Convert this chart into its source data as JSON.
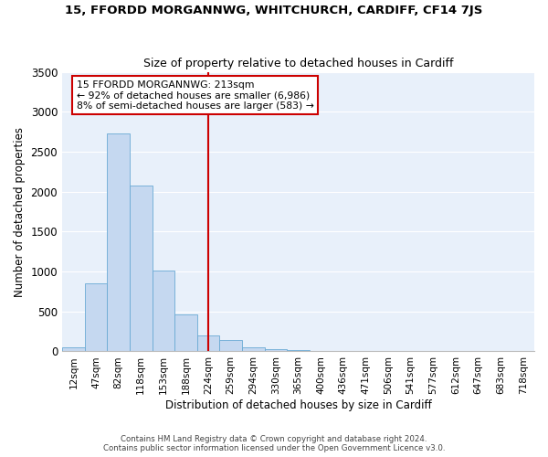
{
  "title": "15, FFORDD MORGANNWG, WHITCHURCH, CARDIFF, CF14 7JS",
  "subtitle": "Size of property relative to detached houses in Cardiff",
  "xlabel": "Distribution of detached houses by size in Cardiff",
  "ylabel": "Number of detached properties",
  "bar_color": "#c5d8f0",
  "bar_edgecolor": "#6aaad4",
  "background_color": "#e8f0fa",
  "grid_color": "#ffffff",
  "categories": [
    "12sqm",
    "47sqm",
    "82sqm",
    "118sqm",
    "153sqm",
    "188sqm",
    "224sqm",
    "259sqm",
    "294sqm",
    "330sqm",
    "365sqm",
    "400sqm",
    "436sqm",
    "471sqm",
    "506sqm",
    "541sqm",
    "577sqm",
    "612sqm",
    "647sqm",
    "683sqm",
    "718sqm"
  ],
  "values": [
    55,
    855,
    2730,
    2075,
    1010,
    460,
    205,
    140,
    55,
    25,
    20,
    10,
    0,
    0,
    0,
    0,
    0,
    0,
    0,
    0,
    0
  ],
  "ylim": [
    0,
    3500
  ],
  "yticks": [
    0,
    500,
    1000,
    1500,
    2000,
    2500,
    3000,
    3500
  ],
  "vline_bin": 6,
  "annotation_title": "15 FFORDD MORGANNWG: 213sqm",
  "annotation_line1": "← 92% of detached houses are smaller (6,986)",
  "annotation_line2": "8% of semi-detached houses are larger (583) →",
  "annotation_box_color": "#ffffff",
  "annotation_box_edgecolor": "#cc0000",
  "vline_color": "#cc0000",
  "footer1": "Contains HM Land Registry data © Crown copyright and database right 2024.",
  "footer2": "Contains public sector information licensed under the Open Government Licence v3.0."
}
